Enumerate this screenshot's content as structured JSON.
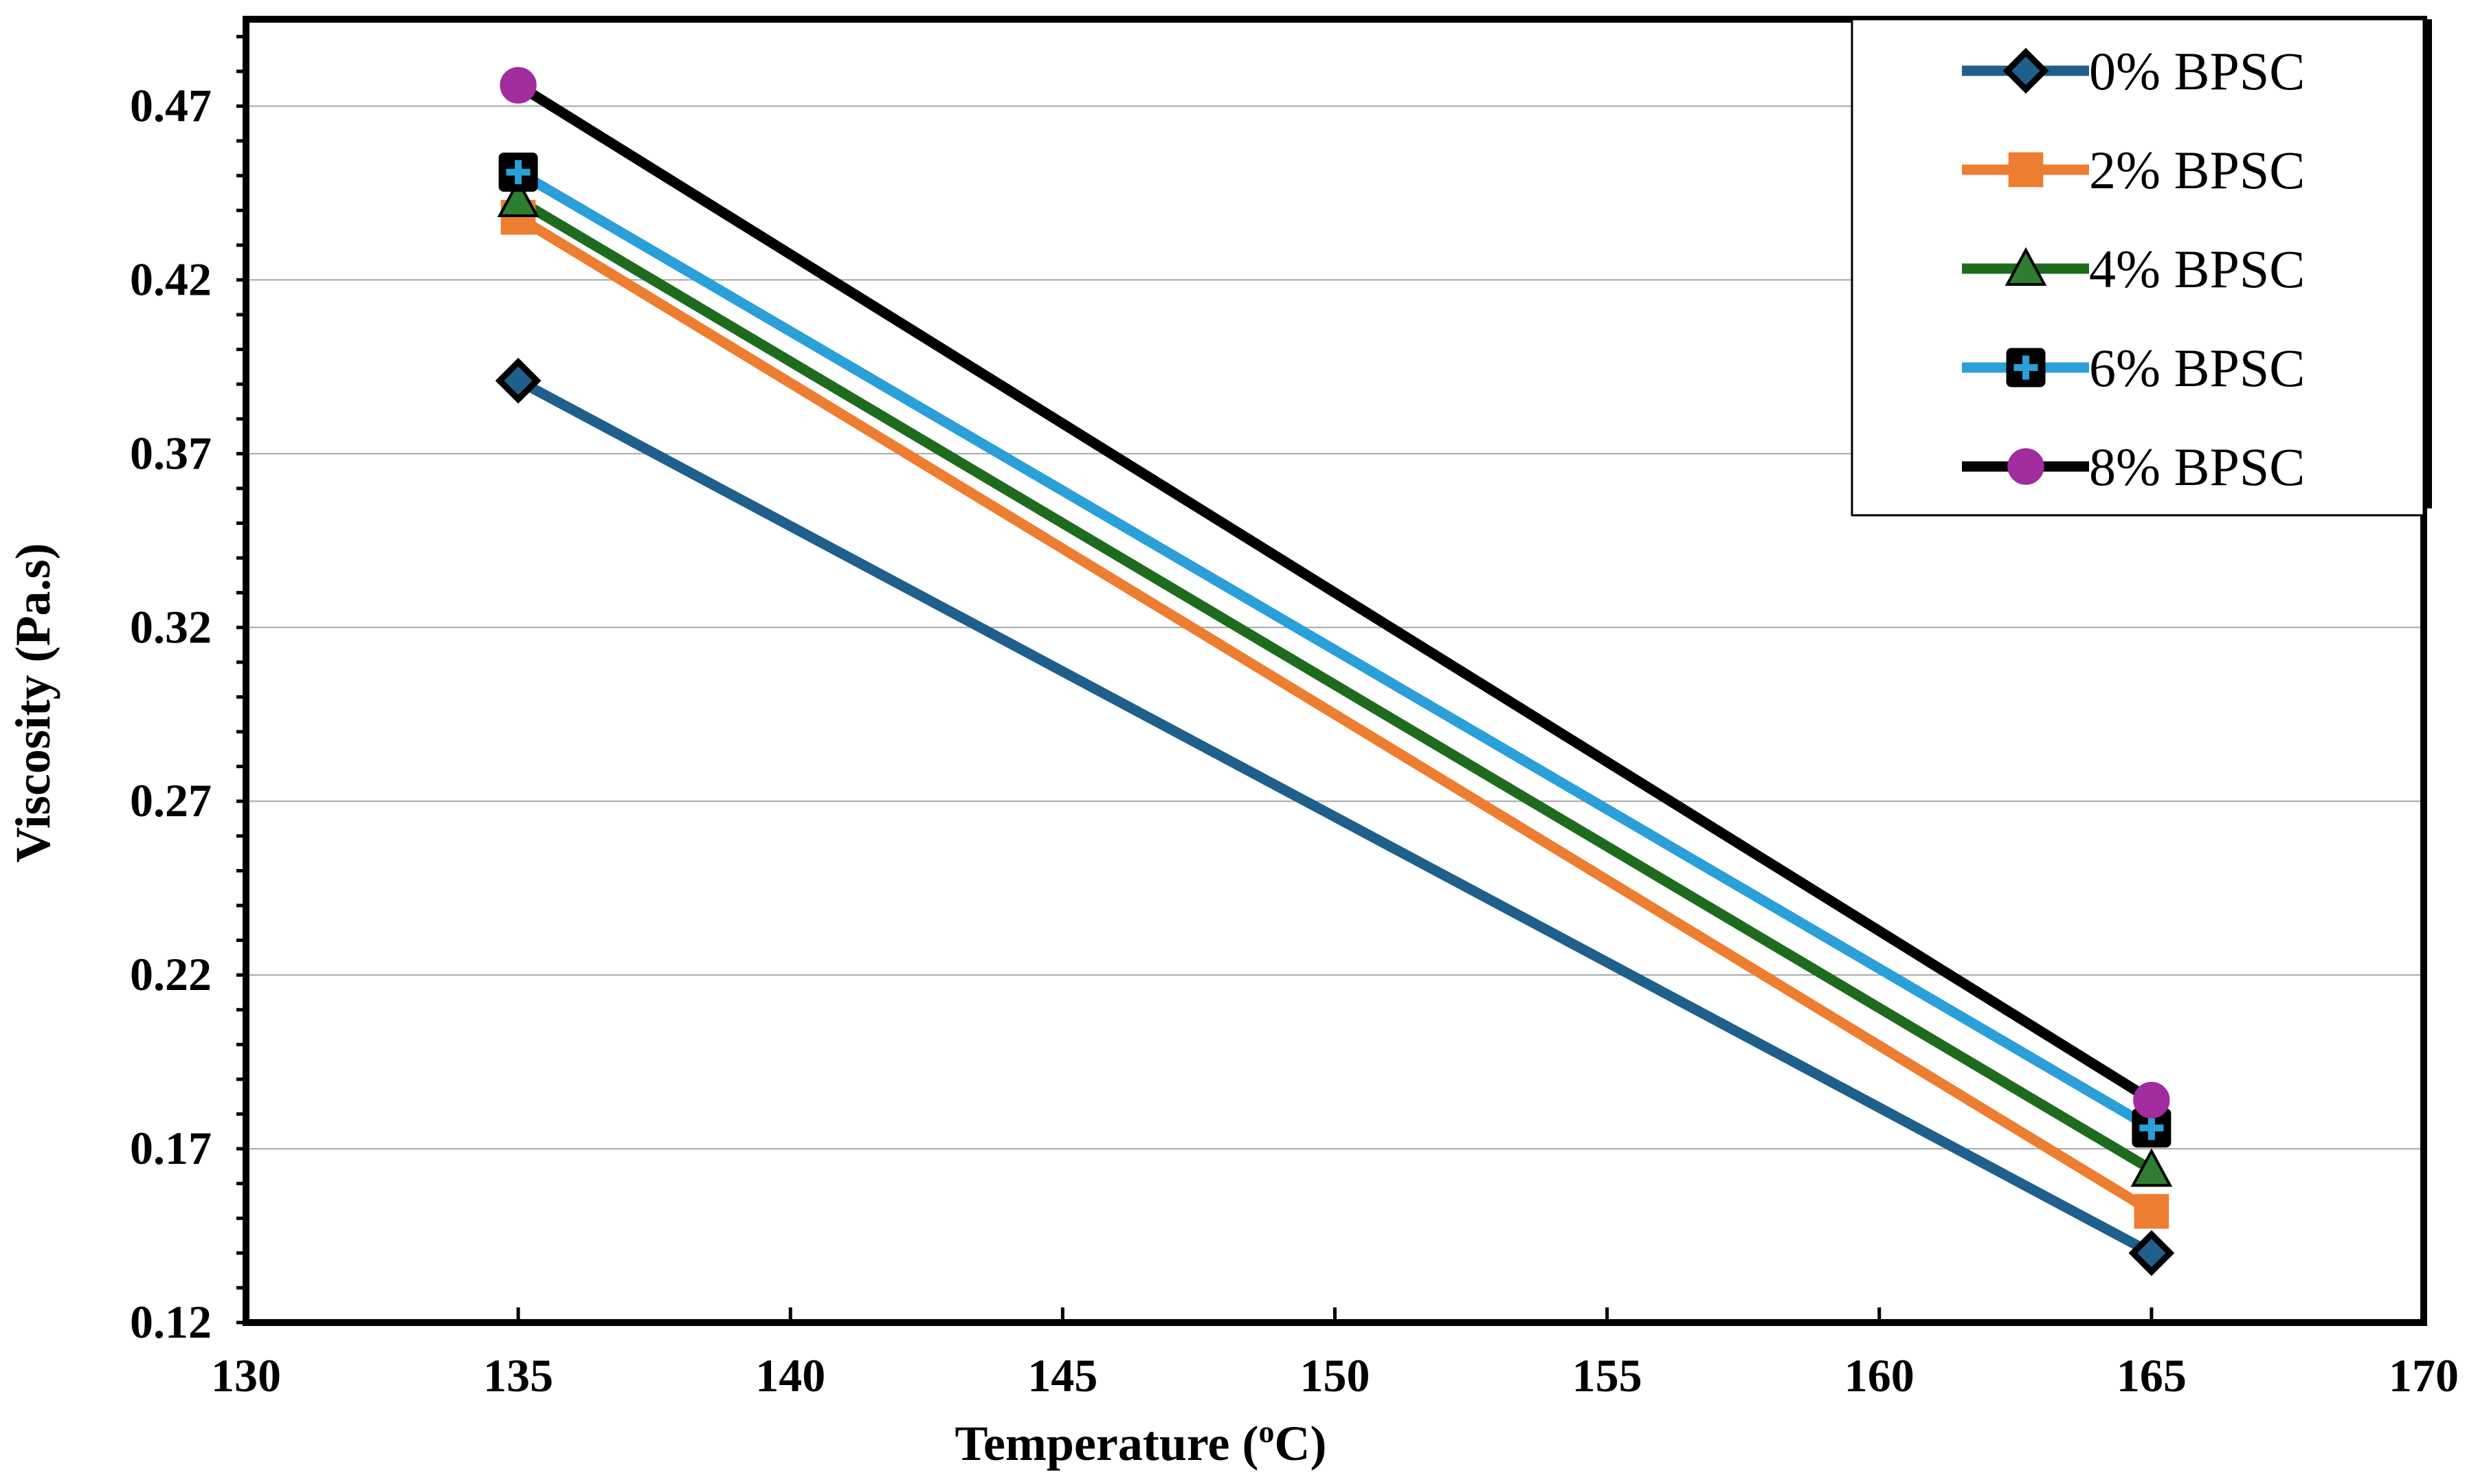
{
  "chart_data": {
    "type": "line",
    "title": "",
    "xlabel": "Temperature (",
    "xlabel_superscript": "o",
    "xlabel_suffix": "C)",
    "ylabel": "Viscosity (Pa.s)",
    "xlim": [
      130,
      170
    ],
    "ylim": [
      0.12,
      0.495
    ],
    "x_ticks": [
      130,
      135,
      140,
      145,
      150,
      155,
      160,
      165,
      170
    ],
    "y_ticks": [
      0.12,
      0.17,
      0.22,
      0.27,
      0.32,
      0.37,
      0.42,
      0.47
    ],
    "y_tick_labels": [
      "0.12",
      "0.17",
      "0.22",
      "0.27",
      "0.32",
      "0.37",
      "0.42",
      "0.47"
    ],
    "grid": "horizontal",
    "legend_position": "top-right",
    "x": [
      135,
      165
    ],
    "series": [
      {
        "name": "0% BPSC",
        "values": [
          0.391,
          0.14
        ],
        "color": "#1f5f8b",
        "marker": "diamond"
      },
      {
        "name": "2% BPSC",
        "values": [
          0.438,
          0.152
        ],
        "color": "#ed7d31",
        "marker": "square"
      },
      {
        "name": "4% BPSC",
        "values": [
          0.443,
          0.164
        ],
        "color": "#1e6b1e",
        "marker": "triangle"
      },
      {
        "name": "6% BPSC",
        "values": [
          0.451,
          0.176
        ],
        "color": "#2a9fd8",
        "marker": "plus-square"
      },
      {
        "name": "8% BPSC",
        "values": [
          0.476,
          0.184
        ],
        "color": "#000000",
        "marker": "circle"
      }
    ],
    "marker_colors": {
      "diamond_fill": "#1f5f8b",
      "square_fill": "#ed7d31",
      "triangle_fill": "#2e7d32",
      "plus_square_fill": "#000000",
      "plus_color": "#2a9fd8",
      "circle_fill": "#a02c9e"
    }
  }
}
